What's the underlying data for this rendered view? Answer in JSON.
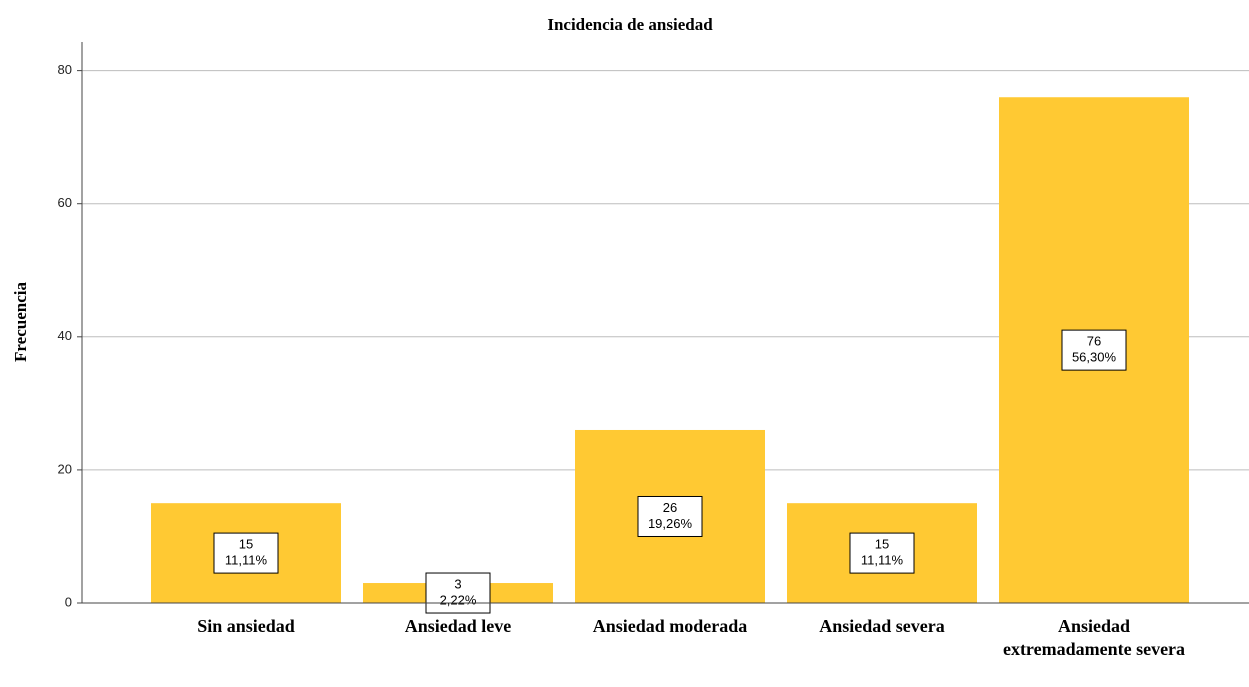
{
  "chart_data": {
    "type": "bar",
    "title": "Incidencia de ansiedad",
    "y_label": "Frecuencia",
    "categories": [
      "Sin ansiedad",
      "Ansiedad leve",
      "Ansiedad moderada",
      "Ansiedad severa",
      "Ansiedad extremadamente severa"
    ],
    "values": [
      15,
      3,
      26,
      15,
      76
    ],
    "value_labels": [
      "11,11%",
      "2,22%",
      "19,26%",
      "11,11%",
      "56,30%"
    ],
    "color": "#ffc933",
    "ylim": [
      0,
      84
    ],
    "yticks": [
      0,
      20,
      40,
      60,
      80
    ],
    "grid": true
  }
}
